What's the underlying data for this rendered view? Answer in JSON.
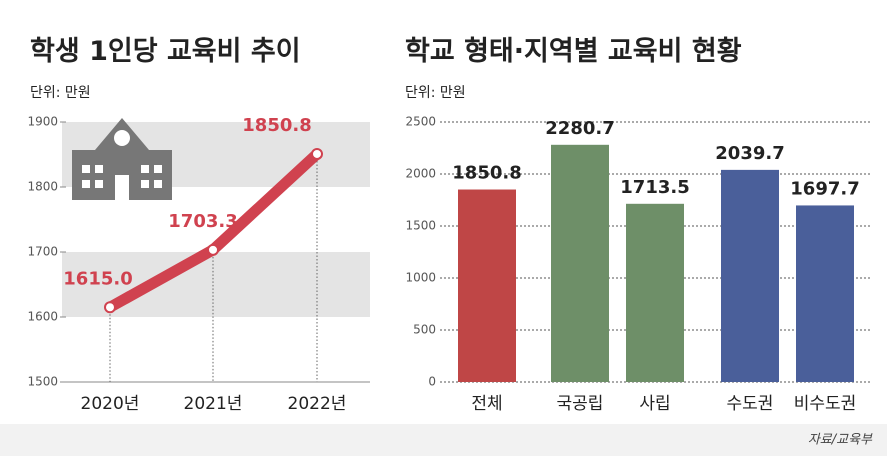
{
  "chart_data": [
    {
      "type": "line",
      "title": "학생 1인당 교육비 추이",
      "unit": "단위: 만원",
      "categories": [
        "2020년",
        "2021년",
        "2022년"
      ],
      "values": [
        1615.0,
        1703.3,
        1850.8
      ],
      "value_labels": [
        "1615.0",
        "1703.3",
        "1850.8"
      ],
      "color": "#d0424f",
      "ylim": [
        1500,
        1900
      ],
      "yticks": [
        1500,
        1600,
        1700,
        1800,
        1900
      ]
    },
    {
      "type": "bar",
      "title": "학교 형태·지역별 교육비 현황",
      "unit": "단위: 만원",
      "categories": [
        "전체",
        "국공립",
        "사립",
        "수도권",
        "비수도권"
      ],
      "values": [
        1850.8,
        2280.7,
        1713.5,
        2039.7,
        1697.7
      ],
      "colors": [
        "#bf4646",
        "#6e8f68",
        "#6e8f68",
        "#4a5f9a",
        "#4a5f9a"
      ],
      "ylim": [
        0,
        2500
      ],
      "yticks": [
        0,
        500,
        1000,
        1500,
        2000,
        2500
      ],
      "grid": true
    }
  ],
  "source": "자료/교육부"
}
